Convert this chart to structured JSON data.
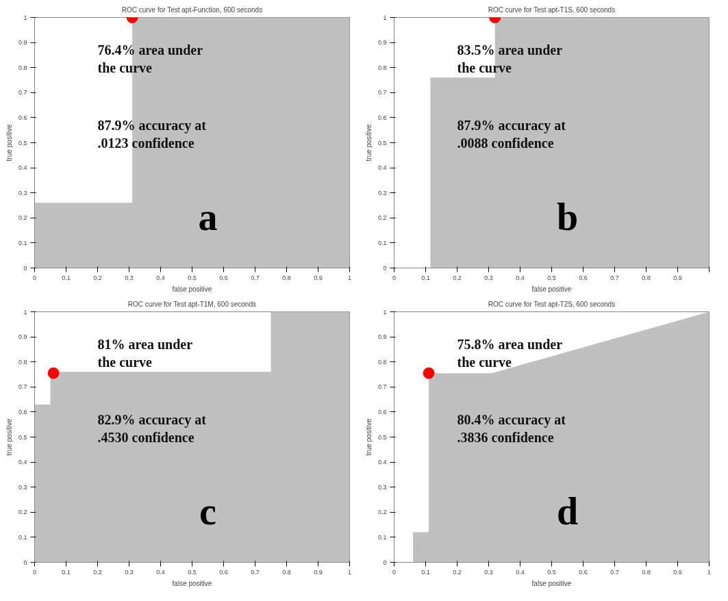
{
  "chart_data": [
    {
      "type": "area",
      "title": "ROC curve for Test apt-Function, 600 seconds",
      "xlabel": "false positive",
      "ylabel": "true positive",
      "xlim": [
        0,
        1
      ],
      "ylim": [
        0,
        1
      ],
      "xticks": [
        0,
        0.1,
        0.2,
        0.3,
        0.4,
        0.5,
        0.6,
        0.7,
        0.8,
        0.9,
        1
      ],
      "yticks": [
        0,
        0.1,
        0.2,
        0.3,
        0.4,
        0.5,
        0.6,
        0.7,
        0.8,
        0.9,
        1
      ],
      "grid": false,
      "series": [
        {
          "color": "#c0c0c0",
          "x": [
            0,
            0.31,
            0.31,
            1
          ],
          "values": [
            0.26,
            0.26,
            1,
            1
          ]
        },
        {
          "type": "scatter",
          "color": "#ff0000",
          "x": [
            0.31
          ],
          "values": [
            1
          ]
        }
      ],
      "annotations": [
        "76.4% area under the curve",
        "87.9% accuracy at .0123 confidence",
        "a"
      ]
    },
    {
      "type": "area",
      "title": "ROC curve for Test apt-T1S, 600 seconds",
      "xlabel": "false positive",
      "ylabel": "true positive",
      "xlim": [
        0,
        1
      ],
      "ylim": [
        0,
        1
      ],
      "xticks": [
        0,
        0.1,
        0.2,
        0.3,
        0.4,
        0.5,
        0.6,
        0.7,
        0.8,
        0.9,
        {
          "value": 1,
          "label": null
        }
      ],
      "yticks": [
        0,
        0.1,
        0.2,
        0.3,
        0.4,
        0.5,
        0.6,
        0.7,
        0.8,
        0.9,
        1
      ],
      "grid": false,
      "series": [
        {
          "color": "#c0c0c0",
          "x": [
            0.115,
            0.32,
            0.32,
            1
          ],
          "values": [
            0.76,
            0.76,
            1,
            1
          ]
        },
        {
          "type": "scatter",
          "color": "#ff0000",
          "x": [
            0.32
          ],
          "values": [
            1
          ]
        }
      ],
      "annotations": [
        "83.5% area under the curve",
        "87.9% accuracy at .0088 confidence",
        "b"
      ]
    },
    {
      "type": "area",
      "title": "ROC curve for Test apt-T1M, 600 seconds",
      "xlabel": "false positive",
      "ylabel": "true positive",
      "xlim": [
        0,
        1
      ],
      "ylim": [
        0,
        1
      ],
      "xticks": [
        0,
        0.1,
        0.2,
        0.3,
        0.4,
        0.5,
        0.6,
        0.7,
        0.8,
        0.9,
        1
      ],
      "yticks": [
        0,
        0.1,
        0.2,
        0.3,
        0.4,
        0.5,
        0.6,
        0.7,
        0.8,
        0.9,
        1
      ],
      "grid": false,
      "series": [
        {
          "color": "#c0c0c0",
          "x": [
            0,
            0.05,
            0.05,
            0.75,
            0.75,
            1
          ],
          "values": [
            0.63,
            0.63,
            0.76,
            0.76,
            1,
            1
          ]
        },
        {
          "type": "scatter",
          "color": "#ff0000",
          "x": [
            0.06
          ],
          "values": [
            0.755
          ]
        }
      ],
      "annotations": [
        "81% area under the curve",
        "82.9% accuracy at .4530 confidence",
        "c"
      ]
    },
    {
      "type": "area",
      "title": "ROC curve for Test apt-T2S, 600 seconds",
      "xlabel": "false positive",
      "ylabel": "true positive",
      "xlim": [
        0,
        1
      ],
      "ylim": [
        0,
        1
      ],
      "xticks": [
        0,
        0.1,
        0.2,
        0.3,
        0.4,
        0.5,
        0.6,
        0.7,
        0.8,
        0.9,
        1
      ],
      "yticks": [
        0,
        0.1,
        0.2,
        0.3,
        0.4,
        0.5,
        0.6,
        0.7,
        0.8,
        0.9,
        1
      ],
      "grid": false,
      "series": [
        {
          "color": "#c0c0c0",
          "x": [
            0,
            0.06,
            0.06,
            0.11,
            0.11,
            0.31,
            1
          ],
          "values": [
            0,
            0,
            0.12,
            0.12,
            0.755,
            0.755,
            1
          ]
        },
        {
          "type": "scatter",
          "color": "#ff0000",
          "x": [
            0.11
          ],
          "values": [
            0.755
          ]
        }
      ],
      "annotations": [
        "75.8% area under the curve",
        "80.4% accuracy at .3836 confidence",
        "d"
      ]
    }
  ]
}
